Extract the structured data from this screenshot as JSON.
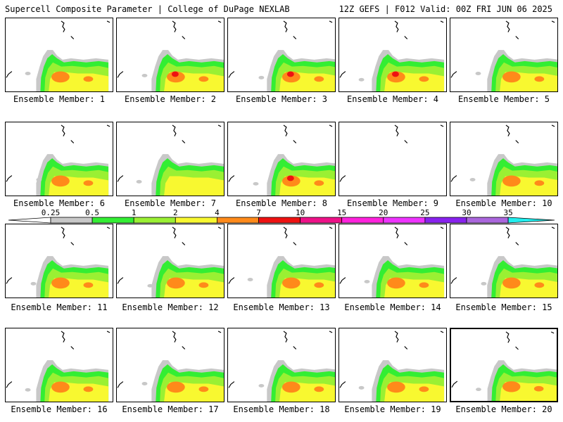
{
  "header": {
    "title_left": "Supercell Composite Parameter | College of DuPage NEXLAB",
    "title_right": "12Z GEFS | F012 Valid: 00Z FRI JUN 06 2025"
  },
  "colorbar": {
    "ticks": [
      "0.25",
      "0.5",
      "1",
      "2",
      "4",
      "7",
      "10",
      "15",
      "20",
      "25",
      "30",
      "35"
    ],
    "colors": [
      "#ffffff",
      "#c8c8c8",
      "#33ee33",
      "#9af033",
      "#f8f830",
      "#ff8a1a",
      "#ee1111",
      "#ee1188",
      "#ff22dd",
      "#ee33ff",
      "#8822ee",
      "#aa66dd",
      "#22eeee"
    ]
  },
  "fill_colors": {
    "gray": "#c8c8c8",
    "green": "#33ee33",
    "lime": "#9af033",
    "yellow": "#f8f830",
    "orange": "#ff8a1a",
    "red": "#ee1111"
  },
  "panels": [
    {
      "label": "Ensemble Member: 1",
      "max": "orange"
    },
    {
      "label": "Ensemble Member: 2",
      "max": "red"
    },
    {
      "label": "Ensemble Member: 3",
      "max": "red"
    },
    {
      "label": "Ensemble Member: 4",
      "max": "red"
    },
    {
      "label": "Ensemble Member: 5",
      "max": "orange"
    },
    {
      "label": "Ensemble Member: 6",
      "max": "orange"
    },
    {
      "label": "Ensemble Member: 7",
      "max": "yellow"
    },
    {
      "label": "Ensemble Member: 8",
      "max": "red"
    },
    {
      "label": "Ensemble Member: 9",
      "max": "none"
    },
    {
      "label": "Ensemble Member: 10",
      "max": "orange"
    },
    {
      "label": "Ensemble Member: 11",
      "max": "orange"
    },
    {
      "label": "Ensemble Member: 12",
      "max": "orange"
    },
    {
      "label": "Ensemble Member: 13",
      "max": "orange"
    },
    {
      "label": "Ensemble Member: 14",
      "max": "orange"
    },
    {
      "label": "Ensemble Member: 15",
      "max": "orange"
    },
    {
      "label": "Ensemble Member: 16",
      "max": "orange"
    },
    {
      "label": "Ensemble Member: 17",
      "max": "orange"
    },
    {
      "label": "Ensemble Member: 18",
      "max": "orange"
    },
    {
      "label": "Ensemble Member: 19",
      "max": "orange"
    },
    {
      "label": "Ensemble Member: 20",
      "max": "orange",
      "selected": true
    }
  ]
}
